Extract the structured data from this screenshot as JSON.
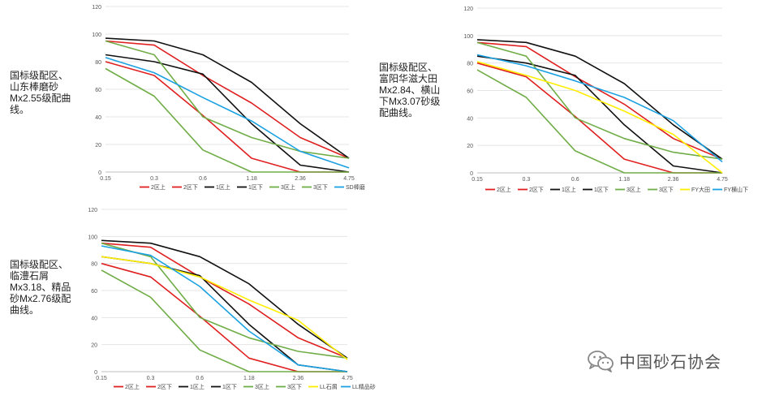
{
  "captions": {
    "c1": "国标级配区、\n山东棒磨砂\nMx2.55级配曲\n线。",
    "c2": "国标级配区、\n富阳华滋大田\nMx2.84、横山\n下Mx3.07砂级\n配曲线。",
    "c3": "国标级配区、\n临澧石屑\nMx3.18、精品\n砂Mx2.76级配\n曲线。"
  },
  "watermark": {
    "text": "中国砂石协会",
    "icon": "wechat-icon"
  },
  "chart_data": [
    {
      "type": "line",
      "title": "",
      "categories": [
        "0.15",
        "0.3",
        "0.6",
        "1.18",
        "2.36",
        "4.75"
      ],
      "ylim": [
        0,
        120
      ],
      "yticks": [
        "0",
        "20",
        "40",
        "60",
        "80",
        "100",
        "120"
      ],
      "grid": true,
      "legend": "bottom",
      "series": [
        {
          "name": "2区上",
          "color": "#e02020",
          "values": [
            95,
            92,
            70,
            50,
            25,
            10
          ]
        },
        {
          "name": "2区下",
          "color": "#e02020",
          "values": [
            80,
            70,
            41,
            10,
            0,
            0
          ]
        },
        {
          "name": "1区上",
          "color": "#111111",
          "values": [
            97,
            95,
            85,
            65,
            35,
            10
          ]
        },
        {
          "name": "1区下",
          "color": "#111111",
          "values": [
            85,
            80,
            71,
            35,
            5,
            0
          ]
        },
        {
          "name": "3区上",
          "color": "#70ad47",
          "values": [
            75,
            55,
            16,
            0,
            0,
            0
          ]
        },
        {
          "name": "3区下",
          "color": "#70ad47",
          "values": [
            95,
            85,
            40,
            25,
            15,
            10
          ]
        },
        {
          "name": "SD棒磨",
          "color": "#1ba1e2",
          "values": [
            83,
            72,
            54,
            37,
            15,
            3
          ]
        }
      ]
    },
    {
      "type": "line",
      "title": "",
      "categories": [
        "0.15",
        "0.3",
        "0.6",
        "1.18",
        "2.36",
        "4.75"
      ],
      "ylim": [
        0,
        120
      ],
      "yticks": [
        "0",
        "20",
        "40",
        "60",
        "80",
        "100",
        "120"
      ],
      "grid": true,
      "legend": "bottom",
      "series": [
        {
          "name": "2区上",
          "color": "#e02020",
          "values": [
            95,
            92,
            70,
            50,
            25,
            10
          ]
        },
        {
          "name": "2区下",
          "color": "#e02020",
          "values": [
            80,
            70,
            41,
            10,
            0,
            0
          ]
        },
        {
          "name": "1区上",
          "color": "#111111",
          "values": [
            97,
            95,
            85,
            65,
            35,
            10
          ]
        },
        {
          "name": "1区下",
          "color": "#111111",
          "values": [
            85,
            80,
            71,
            35,
            5,
            0
          ]
        },
        {
          "name": "3区上",
          "color": "#70ad47",
          "values": [
            75,
            55,
            16,
            0,
            0,
            0
          ]
        },
        {
          "name": "3区下",
          "color": "#70ad47",
          "values": [
            95,
            85,
            40,
            25,
            15,
            10
          ]
        },
        {
          "name": "FY大田",
          "color": "#ffee00",
          "values": [
            81,
            71,
            60,
            45,
            28,
            0
          ]
        },
        {
          "name": "FY横山下",
          "color": "#1ba1e2",
          "values": [
            86,
            78,
            67,
            55,
            38,
            8
          ]
        }
      ]
    },
    {
      "type": "line",
      "title": "",
      "categories": [
        "0.15",
        "0.3",
        "0.6",
        "1.18",
        "2.36",
        "4.75"
      ],
      "ylim": [
        0,
        120
      ],
      "yticks": [
        "0",
        "20",
        "40",
        "60",
        "80",
        "100",
        "120"
      ],
      "grid": true,
      "legend": "bottom",
      "series": [
        {
          "name": "2区上",
          "color": "#e02020",
          "values": [
            95,
            92,
            70,
            50,
            25,
            10
          ]
        },
        {
          "name": "2区下",
          "color": "#e02020",
          "values": [
            80,
            70,
            41,
            10,
            0,
            0
          ]
        },
        {
          "name": "1区上",
          "color": "#111111",
          "values": [
            97,
            95,
            85,
            65,
            35,
            10
          ]
        },
        {
          "name": "1区下",
          "color": "#111111",
          "values": [
            85,
            80,
            71,
            35,
            5,
            0
          ]
        },
        {
          "name": "3区上",
          "color": "#70ad47",
          "values": [
            75,
            55,
            16,
            0,
            0,
            0
          ]
        },
        {
          "name": "3区下",
          "color": "#70ad47",
          "values": [
            95,
            85,
            40,
            25,
            15,
            10
          ]
        },
        {
          "name": "LL石屑",
          "color": "#ffee00",
          "values": [
            85,
            80,
            70,
            53,
            38,
            9
          ]
        },
        {
          "name": "LL精品砂",
          "color": "#1ba1e2",
          "values": [
            93,
            86,
            63,
            30,
            5,
            0
          ]
        }
      ]
    }
  ]
}
